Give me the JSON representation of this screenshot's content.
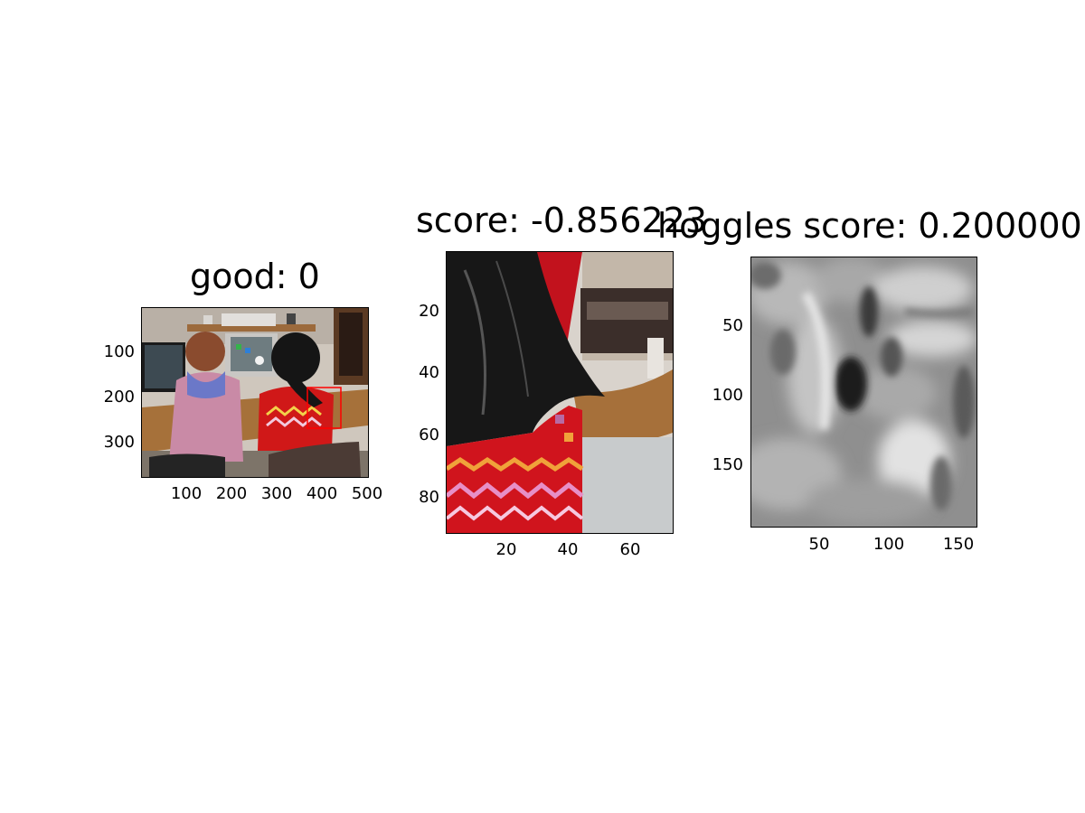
{
  "figure": {
    "panels": [
      {
        "title": "good: 0",
        "yticks": [
          "100",
          "200",
          "300"
        ],
        "xticks": [
          "100",
          "200",
          "300",
          "400",
          "500"
        ],
        "image": "photo of two women seated at a desk with a computer monitor"
      },
      {
        "title": "score: -0.856223",
        "yticks": [
          "20",
          "40",
          "60",
          "80"
        ],
        "xticks": [
          "20",
          "40",
          "60"
        ],
        "image": "cropped patch: dark hair over red patterned sweater beside desk edge"
      },
      {
        "title": "hoggles score: 0.200000",
        "yticks": [
          "50",
          "100",
          "150"
        ],
        "xticks": [
          "50",
          "100",
          "150"
        ],
        "image": "grayscale blurred reconstruction"
      }
    ],
    "colors": {
      "detection_box": "#ff0000",
      "sweater_red": "#d01818",
      "desk_brown": "#a6713a",
      "blouse_pink": "#c98aa6"
    }
  }
}
